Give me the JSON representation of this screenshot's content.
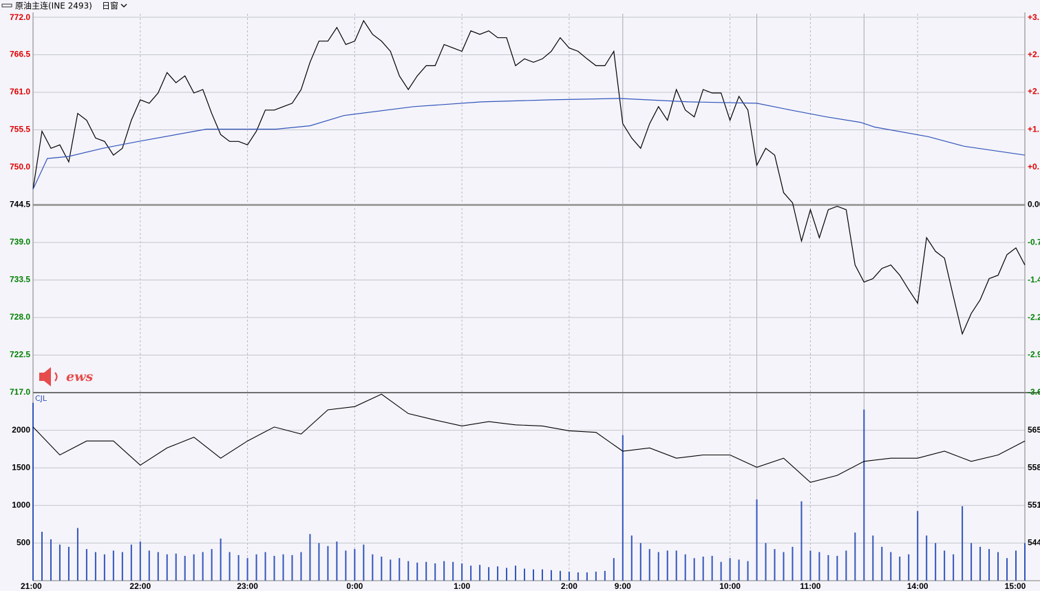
{
  "header": {
    "title": "原油主连(INE 2493)",
    "window": "日窗",
    "logo": "ews"
  },
  "chart_data": [
    {
      "type": "line",
      "xlim": [
        0,
        555
      ],
      "ylim": [
        717,
        772
      ],
      "yticks": [
        {
          "value": 772,
          "label": "772.0"
        },
        766.5,
        {
          "value": 761,
          "label": "761.0"
        },
        755.5,
        {
          "value": 750,
          "label": "750.0"
        },
        744.5,
        {
          "value": 739,
          "label": "739.0"
        },
        733.5,
        {
          "value": 728,
          "label": "728.0"
        },
        722.5,
        {
          "value": 717,
          "label": "717.0"
        }
      ],
      "y2lim": [
        -3.69,
        3.69
      ],
      "y2ticks": [
        {
          "value": 3.69,
          "label": "+3."
        },
        {
          "value": 2.95,
          "label": "+2."
        },
        {
          "value": 2.22,
          "label": "+2."
        },
        {
          "value": 1.48,
          "label": "+1."
        },
        {
          "value": 0.74,
          "label": "+0."
        },
        {
          "value": 0,
          "label": "0.00"
        },
        {
          "value": -0.74,
          "label": "-0.7"
        },
        {
          "value": -1.48,
          "label": "-1.4"
        },
        {
          "value": -2.22,
          "label": "-2.2"
        },
        {
          "value": -2.95,
          "label": "-2.9"
        },
        {
          "value": -3.69,
          "label": "-3.6"
        }
      ],
      "up_color": "#e00000",
      "down_color": "#008000",
      "grid": true,
      "session_breaks": [
        330,
        405,
        465
      ],
      "x": [
        0,
        5,
        10,
        15,
        20,
        25,
        30,
        35,
        40,
        45,
        50,
        55,
        60,
        65,
        70,
        75,
        80,
        85,
        90,
        95,
        100,
        105,
        110,
        115,
        120,
        125,
        130,
        135,
        140,
        145,
        150,
        155,
        160,
        165,
        170,
        175,
        180,
        185,
        190,
        195,
        200,
        205,
        210,
        215,
        220,
        225,
        230,
        235,
        240,
        245,
        250,
        255,
        260,
        265,
        270,
        275,
        280,
        285,
        290,
        295,
        300,
        305,
        310,
        315,
        320,
        325,
        330,
        335,
        340,
        345,
        350,
        355,
        360,
        365,
        370,
        375,
        380,
        385,
        390,
        395,
        400,
        405,
        410,
        415,
        420,
        425,
        430,
        435,
        440,
        445,
        450,
        455,
        460,
        465,
        470,
        475,
        480,
        485,
        490,
        495,
        500,
        505,
        510,
        515,
        520,
        525,
        530,
        535,
        540,
        545,
        550,
        555
      ],
      "series": [
        {
          "color": "#000000",
          "values": [
            746.8,
            755.3,
            752.8,
            753.3,
            750.8,
            757.9,
            756.9,
            754.3,
            753.8,
            751.8,
            752.8,
            756.9,
            759.9,
            759.4,
            760.9,
            763.9,
            762.4,
            763.4,
            760.9,
            761.4,
            757.9,
            754.8,
            753.8,
            753.8,
            753.3,
            755.3,
            758.4,
            758.4,
            758.9,
            759.4,
            761.4,
            765.4,
            768.5,
            768.5,
            770.5,
            768.0,
            768.5,
            771.5,
            769.5,
            768.5,
            767.0,
            763.4,
            761.4,
            763.4,
            764.9,
            764.9,
            768.0,
            767.5,
            767.0,
            770.0,
            769.5,
            770.0,
            769.0,
            769.0,
            764.9,
            765.9,
            765.4,
            765.9,
            767.0,
            769.0,
            767.5,
            767.0,
            765.9,
            764.9,
            764.9,
            767.0,
            756.4,
            754.3,
            752.8,
            756.4,
            758.9,
            756.9,
            761.4,
            758.4,
            757.4,
            761.4,
            760.9,
            760.9,
            756.9,
            760.4,
            758.4,
            750.3,
            752.8,
            751.8,
            746.3,
            744.8,
            739.2,
            743.8,
            739.7,
            743.8,
            744.3,
            743.8,
            735.7,
            733.2,
            733.7,
            735.2,
            735.7,
            734.2,
            732.1,
            730.1,
            739.7,
            737.7,
            736.7,
            731.1,
            725.6,
            728.6,
            730.6,
            733.7,
            734.2,
            737.2,
            738.2,
            735.7
          ]
        },
        {
          "color": "#3355bb",
          "x": [
            0,
            8,
            20,
            39,
            59,
            97,
            136,
            155,
            174,
            213,
            251,
            290,
            328,
            367,
            405,
            424,
            444,
            463,
            471,
            501,
            521,
            555
          ],
          "values": [
            746.8,
            751.3,
            751.6,
            752.8,
            753.8,
            755.6,
            755.6,
            756.1,
            757.6,
            758.9,
            759.6,
            759.9,
            760.1,
            759.6,
            759.4,
            758.4,
            757.4,
            756.6,
            755.9,
            754.5,
            753.1,
            751.8
          ]
        }
      ]
    },
    {
      "type": "bar",
      "label": "CJL",
      "xlim": [
        0,
        555
      ],
      "xticks": [
        {
          "value": 0,
          "label": "21:00"
        },
        {
          "value": 60,
          "label": "22:00"
        },
        {
          "value": 120,
          "label": "23:00"
        },
        {
          "value": 180,
          "label": "0:00"
        },
        {
          "value": 240,
          "label": "1:00"
        },
        {
          "value": 300,
          "label": "2:00"
        },
        {
          "value": 330,
          "label": "9:00"
        },
        {
          "value": 390,
          "label": "10:00"
        },
        {
          "value": 435,
          "label": "11:00"
        },
        {
          "value": 495,
          "label": "14:00"
        },
        {
          "value": 555,
          "label": "15:00"
        }
      ],
      "ylim": [
        0,
        2500
      ],
      "yticks": [
        500,
        1000,
        1500,
        2000
      ],
      "y2lim": [
        537,
        572
      ],
      "y2ticks": [
        544,
        551,
        558,
        565
      ],
      "grid": true,
      "x": [
        0,
        5,
        10,
        15,
        20,
        25,
        30,
        35,
        40,
        45,
        50,
        55,
        60,
        65,
        70,
        75,
        80,
        85,
        90,
        95,
        100,
        105,
        110,
        115,
        120,
        125,
        130,
        135,
        140,
        145,
        150,
        155,
        160,
        165,
        170,
        175,
        180,
        185,
        190,
        195,
        200,
        205,
        210,
        215,
        220,
        225,
        230,
        235,
        240,
        245,
        250,
        255,
        260,
        265,
        270,
        275,
        280,
        285,
        290,
        295,
        300,
        305,
        310,
        315,
        320,
        325,
        330,
        335,
        340,
        345,
        350,
        355,
        360,
        365,
        370,
        375,
        380,
        385,
        390,
        395,
        400,
        405,
        410,
        415,
        420,
        425,
        430,
        435,
        440,
        445,
        450,
        455,
        460,
        465,
        470,
        475,
        480,
        485,
        490,
        495,
        500,
        505,
        510,
        515,
        520,
        525,
        530,
        535,
        540,
        545,
        550,
        555
      ],
      "series": [
        {
          "color": "#3355bb",
          "values": [
            2365,
            650,
            550,
            480,
            450,
            700,
            420,
            380,
            350,
            400,
            380,
            480,
            520,
            400,
            380,
            350,
            360,
            330,
            350,
            380,
            420,
            560,
            380,
            340,
            300,
            350,
            380,
            330,
            350,
            340,
            380,
            620,
            500,
            460,
            520,
            400,
            420,
            480,
            350,
            320,
            280,
            300,
            260,
            240,
            250,
            230,
            260,
            250,
            230,
            200,
            210,
            180,
            190,
            170,
            200,
            160,
            150,
            150,
            140,
            130,
            120,
            110,
            110,
            120,
            130,
            300,
            1935,
            600,
            500,
            420,
            380,
            400,
            400,
            350,
            300,
            320,
            330,
            250,
            300,
            280,
            260,
            1080,
            500,
            420,
            380,
            450,
            1055,
            400,
            380,
            340,
            330,
            400,
            640,
            2275,
            600,
            450,
            380,
            320,
            350,
            925,
            600,
            500,
            400,
            350,
            990,
            500,
            450,
            420,
            380,
            300,
            400,
            500
          ]
        },
        {
          "type": "line",
          "axis": "y2",
          "color": "#000000",
          "x": [
            0,
            15,
            30,
            45,
            60,
            75,
            90,
            105,
            120,
            135,
            150,
            165,
            180,
            195,
            210,
            225,
            240,
            255,
            270,
            285,
            300,
            315,
            330,
            345,
            360,
            375,
            390,
            405,
            420,
            435,
            450,
            465,
            480,
            495,
            510,
            525,
            540,
            555
          ],
          "values": [
            565.6,
            560.4,
            563.0,
            563.0,
            558.5,
            561.7,
            563.7,
            559.8,
            563.0,
            565.6,
            564.3,
            568.8,
            569.4,
            571.7,
            568.1,
            566.9,
            565.8,
            566.6,
            566.0,
            565.8,
            564.9,
            564.6,
            561.1,
            561.7,
            559.8,
            560.4,
            560.4,
            558.1,
            559.8,
            555.3,
            556.6,
            559.2,
            559.8,
            559.8,
            561.1,
            559.2,
            560.4,
            563.0
          ]
        }
      ]
    }
  ]
}
